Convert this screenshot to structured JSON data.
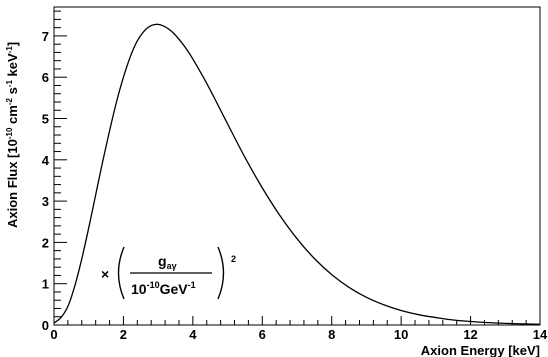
{
  "chart_data": {
    "type": "line",
    "title": "",
    "xlabel": "Axion Energy  [keV]",
    "ylabel": "Axion Flux [10",
    "ylabel_exp1": "-10",
    "ylabel_mid": " cm",
    "ylabel_exp2": "-2",
    "ylabel_mid2": " s",
    "ylabel_exp3": "-1",
    "ylabel_mid3": " keV",
    "ylabel_exp4": "-1",
    "ylabel_end": "]",
    "xlim": [
      0,
      14
    ],
    "ylim": [
      0,
      7.7
    ],
    "x_ticks": [
      "0",
      "2",
      "4",
      "6",
      "8",
      "10",
      "12",
      "14"
    ],
    "y_ticks": [
      "0",
      "1",
      "2",
      "3",
      "4",
      "5",
      "6",
      "7"
    ],
    "grid": false,
    "annotation": {
      "times": "×",
      "numerator": "g",
      "numerator_sub": "aγ",
      "denominator": "10",
      "denominator_exp": "-10",
      "denominator_unit": "GeV",
      "denominator_unit_exp": "-1",
      "power": "2"
    },
    "series": [
      {
        "x": [
          0,
          0.2,
          0.4,
          0.6,
          0.8,
          1.0,
          1.2,
          1.4,
          1.6,
          1.8,
          2.0,
          2.2,
          2.4,
          2.6,
          2.8,
          3.0,
          3.2,
          3.4,
          3.6,
          3.8,
          4.0,
          4.2,
          4.4,
          4.6,
          4.8,
          5.0,
          5.5,
          6.0,
          6.5,
          7.0,
          7.5,
          8.0,
          8.5,
          9.0,
          9.5,
          10.0,
          10.5,
          11.0,
          11.5,
          12.0,
          12.5,
          13.0,
          13.5,
          14.0
        ],
        "y": [
          0.05,
          0.18,
          0.45,
          0.95,
          1.6,
          2.35,
          3.15,
          3.95,
          4.7,
          5.4,
          6.0,
          6.5,
          6.88,
          7.12,
          7.25,
          7.28,
          7.22,
          7.1,
          6.92,
          6.7,
          6.44,
          6.15,
          5.85,
          5.53,
          5.2,
          4.87,
          4.06,
          3.32,
          2.66,
          2.09,
          1.61,
          1.22,
          0.91,
          0.67,
          0.49,
          0.35,
          0.25,
          0.18,
          0.12,
          0.085,
          0.058,
          0.04,
          0.027,
          0.018
        ]
      }
    ]
  }
}
